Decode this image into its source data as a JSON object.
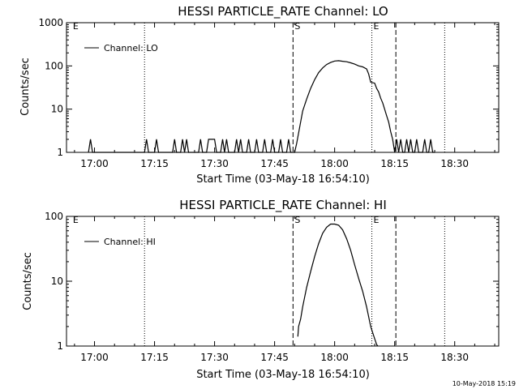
{
  "footer_timestamp": "10-May-2018 15:19",
  "chart_data": [
    {
      "type": "line",
      "title": "HESSI PARTICLE_RATE Channel: LO",
      "xlabel": "Start Time (03-May-18 16:54:10)",
      "ylabel": "Counts/sec",
      "x_ticks": [
        "17:00",
        "17:15",
        "17:30",
        "17:45",
        "18:00",
        "18:15",
        "18:30"
      ],
      "x_tick_minutes": [
        360,
        375,
        390,
        405,
        420,
        435,
        450
      ],
      "y_scale": "log",
      "ylim": [
        1,
        1000
      ],
      "y_ticks": [
        "1",
        "10",
        "100",
        "1000"
      ],
      "y_tick_values": [
        1,
        10,
        100,
        1000
      ],
      "legend": "Channel: LO",
      "legend_position": "top-left",
      "markers": [
        {
          "label": "E",
          "minute": 354.2,
          "style": "none"
        },
        {
          "label": "",
          "minute": 372.5,
          "style": "dotted"
        },
        {
          "label": "S",
          "minute": 409.6,
          "style": "dashed"
        },
        {
          "label": "E",
          "minute": 429.3,
          "style": "dotted"
        },
        {
          "label": "",
          "minute": 435.3,
          "style": "dashed"
        },
        {
          "label": "",
          "minute": 447.5,
          "style": "dotted"
        }
      ],
      "series": [
        {
          "x": [
            358.5,
            359.0,
            359.5,
            360.5,
            372.5,
            373.0,
            373.5,
            375.0,
            375.5,
            376.0,
            379.5,
            380.0,
            380.5,
            381.5,
            382.0,
            382.5,
            383.0,
            383.5,
            384.0,
            386.0,
            386.5,
            387.0,
            388.0,
            388.5,
            389.0,
            389.5,
            390.0,
            390.5,
            391.5,
            392.0,
            392.5,
            393.0,
            393.5,
            394.0,
            395.0,
            395.5,
            396.0,
            396.5,
            397.0,
            398.0,
            398.5,
            399.0,
            400.0,
            400.5,
            401.0,
            402.0,
            402.5,
            403.0,
            404.0,
            404.5,
            405.0,
            406.0,
            406.5,
            407.0,
            408.0,
            408.5,
            409.0,
            410.0,
            410.5,
            411.0,
            411.5,
            412.0,
            413.0,
            414.0,
            415.0,
            416.0,
            417.0,
            418.0,
            419.0,
            420.0,
            421.0,
            422.0,
            423.0,
            424.0,
            425.0,
            426.0,
            427.0,
            428.0,
            428.5,
            429.0,
            430.0,
            430.5,
            431.0,
            431.5,
            432.0,
            432.5,
            433.0,
            433.5,
            434.0,
            434.5,
            435.0,
            435.5,
            436.0,
            436.5,
            437.0,
            437.5,
            438.0,
            438.5,
            439.0,
            439.5,
            440.0,
            440.5,
            441.0,
            441.5,
            442.0,
            442.5,
            443.0,
            443.5,
            444.0,
            444.5,
            445.0
          ],
          "y": [
            1,
            2,
            1,
            1,
            1,
            2,
            1,
            1,
            2,
            1,
            1,
            2,
            1,
            1,
            2,
            1,
            2,
            1,
            1,
            1,
            2,
            1,
            1,
            2,
            2,
            2,
            2,
            1,
            1,
            2,
            1,
            2,
            1,
            1,
            1,
            2,
            1,
            2,
            1,
            1,
            2,
            1,
            1,
            2,
            1,
            1,
            2,
            1,
            1,
            2,
            1,
            1,
            2,
            1,
            1,
            2,
            1,
            1,
            1.6,
            2.8,
            5,
            9,
            17,
            30,
            48,
            70,
            90,
            108,
            120,
            130,
            132,
            128,
            125,
            118,
            110,
            100,
            95,
            85,
            65,
            42,
            40,
            30,
            25,
            18,
            14,
            10,
            7,
            5,
            3,
            2,
            1,
            2,
            1,
            2,
            1,
            1,
            2,
            1,
            2,
            1,
            1,
            2,
            1,
            1,
            1,
            2,
            1,
            1,
            2,
            1,
            1
          ]
        }
      ]
    },
    {
      "type": "line",
      "title": "HESSI PARTICLE_RATE Channel: HI",
      "xlabel": "Start Time (03-May-18 16:54:10)",
      "ylabel": "Counts/sec",
      "x_ticks": [
        "17:00",
        "17:15",
        "17:30",
        "17:45",
        "18:00",
        "18:15",
        "18:30"
      ],
      "x_tick_minutes": [
        360,
        375,
        390,
        405,
        420,
        435,
        450
      ],
      "y_scale": "log",
      "ylim": [
        1,
        100
      ],
      "y_ticks": [
        "1",
        "10",
        "100"
      ],
      "y_tick_values": [
        1,
        10,
        100
      ],
      "legend": "Channel: HI",
      "legend_position": "top-left",
      "markers": [
        {
          "label": "E",
          "minute": 354.2,
          "style": "none"
        },
        {
          "label": "",
          "minute": 372.5,
          "style": "dotted"
        },
        {
          "label": "S",
          "minute": 409.6,
          "style": "dashed"
        },
        {
          "label": "E",
          "minute": 429.3,
          "style": "dotted"
        },
        {
          "label": "",
          "minute": 435.3,
          "style": "dashed"
        },
        {
          "label": "",
          "minute": 447.5,
          "style": "dotted"
        }
      ],
      "series": [
        {
          "x": [
            410.8,
            411.0,
            411.5,
            412.0,
            413.0,
            414.0,
            415.0,
            416.0,
            417.0,
            418.0,
            419.0,
            420.0,
            421.0,
            422.0,
            423.0,
            424.0,
            425.0,
            426.0,
            427.0,
            428.0,
            429.0,
            430.0,
            430.5,
            430.8
          ],
          "y": [
            1.4,
            2,
            2.6,
            4,
            8,
            14,
            24,
            38,
            55,
            68,
            76,
            76,
            73,
            62,
            45,
            30,
            18,
            11,
            7,
            4,
            2,
            1.3,
            1.05,
            1
          ]
        }
      ]
    }
  ]
}
